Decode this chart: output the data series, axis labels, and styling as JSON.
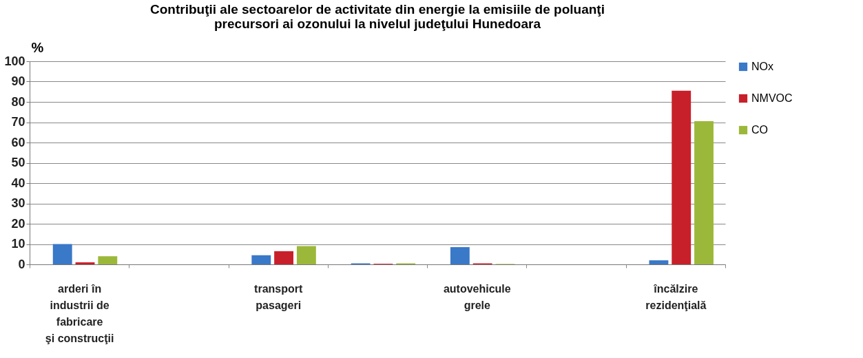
{
  "chart_data": {
    "type": "bar",
    "title": "Contribuţii ale sectoarelor de activitate din energie la emisiile de poluanţi\nprecursori ai ozonului la nivelul judeţului Hunedoara",
    "ylabel": "%",
    "categories": [
      "arderi în\nindustrii de\nfabricare\nşi construcţii",
      null,
      "transport\npasageri",
      null,
      "autovehicule\ngrele",
      null,
      "încălzire\nrezidenţială"
    ],
    "series": [
      {
        "name": "NOx",
        "color": "#3a78c8",
        "values": [
          10,
          null,
          4.5,
          0.5,
          8.5,
          null,
          2
        ]
      },
      {
        "name": "NMVOC",
        "color": "#c8202a",
        "values": [
          1,
          null,
          6.5,
          0.3,
          0.5,
          null,
          85.5
        ]
      },
      {
        "name": "CO",
        "color": "#9cb83a",
        "values": [
          4,
          null,
          9,
          0.5,
          0.2,
          null,
          70.5
        ]
      }
    ],
    "ylim": [
      0,
      100
    ],
    "yticks": [
      0,
      10,
      20,
      30,
      40,
      50,
      60,
      70,
      80,
      90,
      100
    ],
    "grid": "y",
    "legend": "right"
  }
}
